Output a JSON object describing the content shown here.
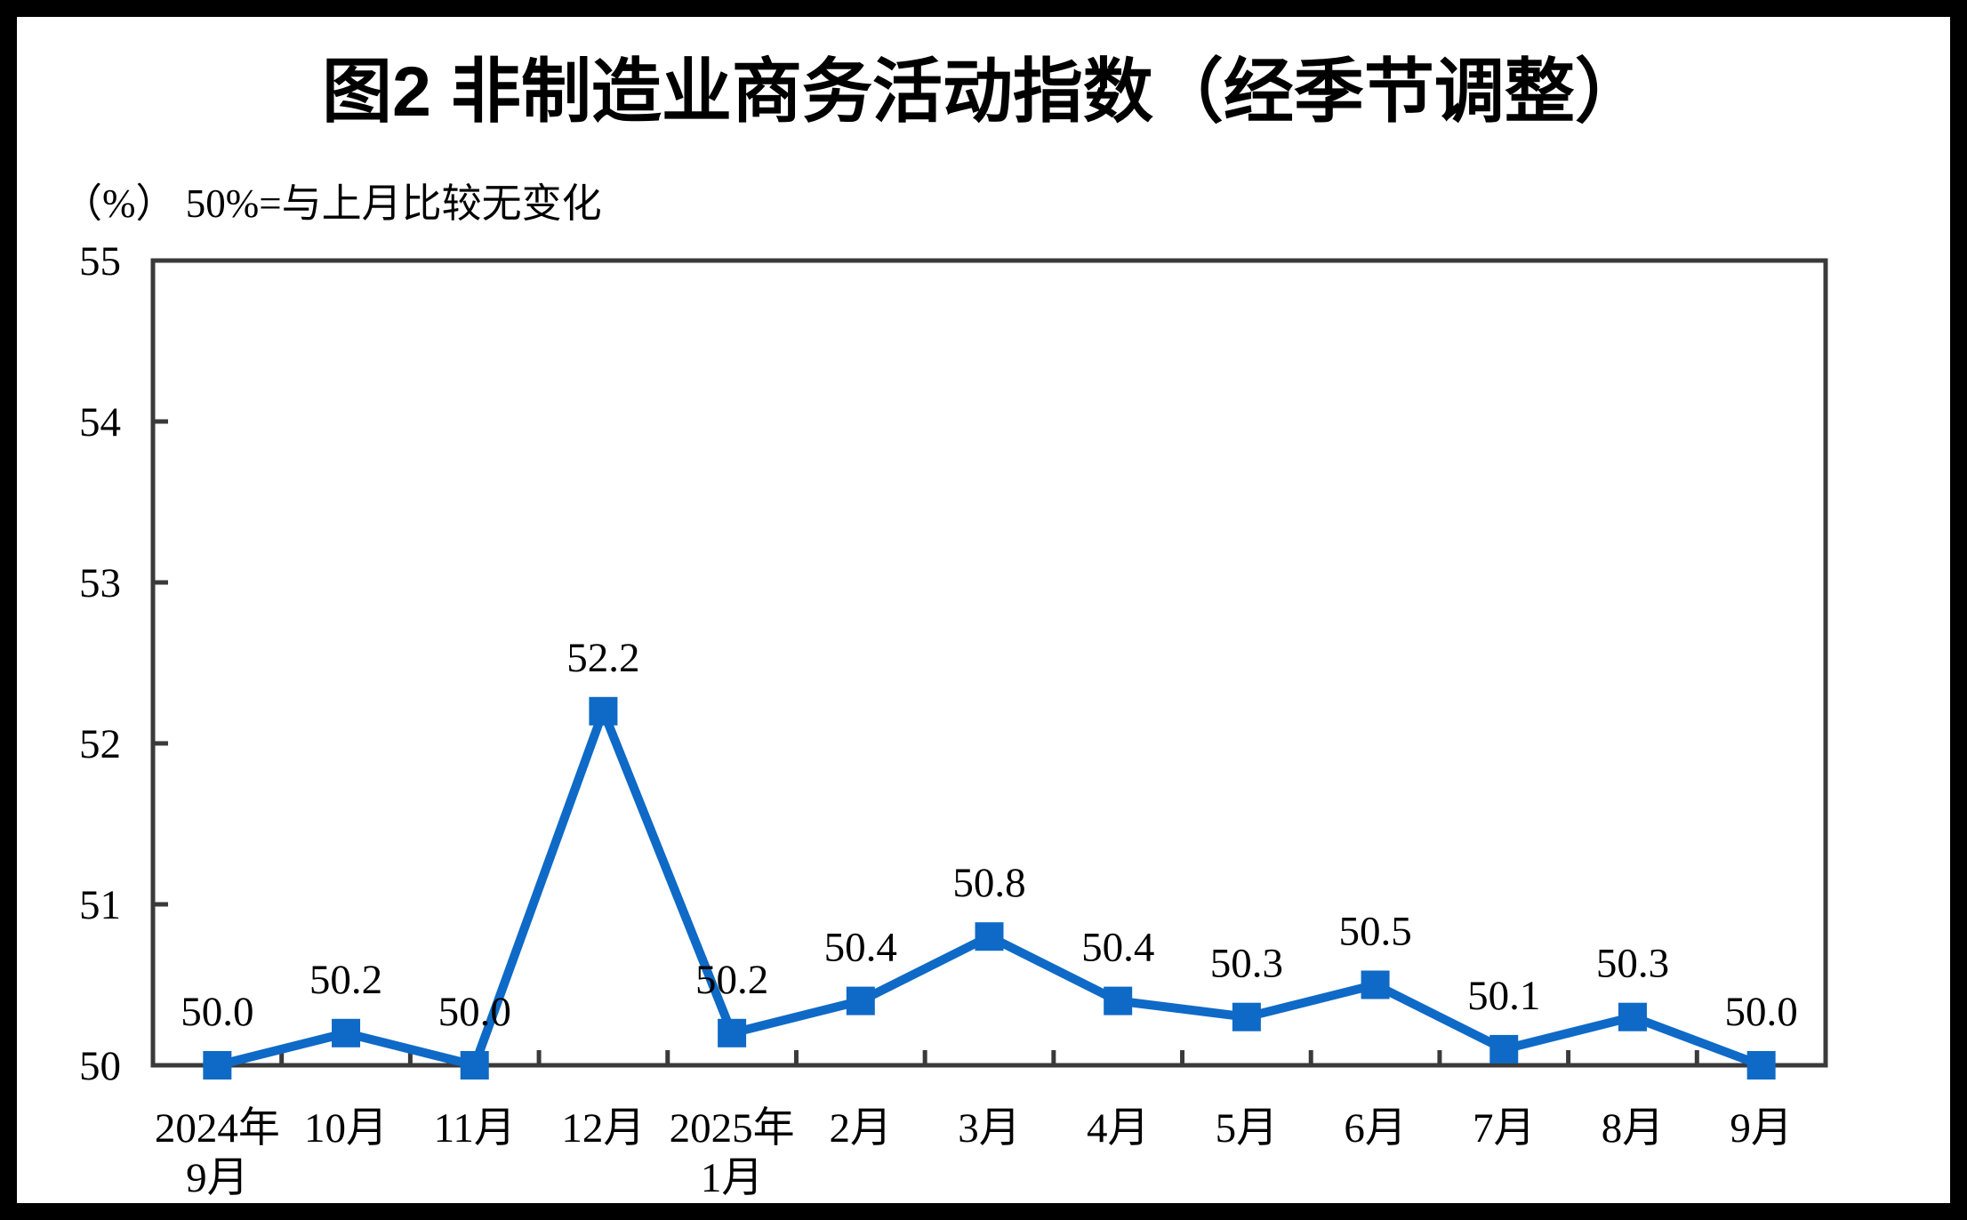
{
  "title": "图2 非制造业商务活动指数（经季节调整）",
  "unit_note": "（%） 50%=与上月比较无变化",
  "colors": {
    "series_line": "#0E6AC6",
    "axis_frame": "#3A3A3A",
    "text": "#000000",
    "background": "#FFFFFF",
    "page_border": "#000000"
  },
  "chart_data": {
    "type": "line",
    "title": "图2 非制造业商务活动指数（经季节调整）",
    "subtitle": "（%） 50%=与上月比较无变化",
    "categories": [
      "2024年\n9月",
      "10月",
      "11月",
      "12月",
      "2025年\n1月",
      "2月",
      "3月",
      "4月",
      "5月",
      "6月",
      "7月",
      "8月",
      "9月"
    ],
    "values": [
      50.0,
      50.2,
      50.0,
      52.2,
      50.2,
      50.4,
      50.8,
      50.4,
      50.3,
      50.5,
      50.1,
      50.3,
      50.0
    ],
    "data_labels": [
      "50.0",
      "50.2",
      "50.0",
      "52.2",
      "50.2",
      "50.4",
      "50.8",
      "50.4",
      "50.3",
      "50.5",
      "50.1",
      "50.3",
      "50.0"
    ],
    "series_name": "非制造业商务活动指数",
    "ylim": [
      50,
      55
    ],
    "yticks": [
      50,
      51,
      52,
      53,
      54,
      55
    ],
    "marker": "square",
    "grid": false,
    "legend_position": "none",
    "xlabel": "",
    "ylabel": "%"
  }
}
